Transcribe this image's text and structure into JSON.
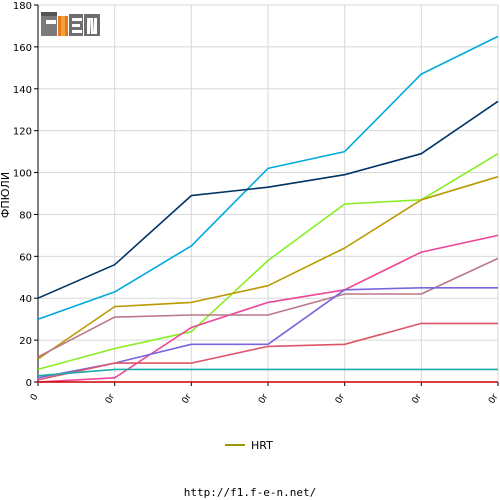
{
  "logo": {
    "text": "F1EN"
  },
  "url": "http://f1.f-e-n.net/",
  "chart_data": {
    "type": "line",
    "ylabel": "ФПЮЛИ",
    "xlabel": "",
    "title": "",
    "ylim": [
      0,
      180
    ],
    "y_ticks": [
      0,
      20,
      40,
      60,
      80,
      100,
      120,
      140,
      160,
      180
    ],
    "x_tick_labels": [
      "0",
      "0r",
      "0r",
      "0r",
      "0r",
      "0r",
      "0r",
      "0r"
    ],
    "grid": true,
    "legend": {
      "position": "bottom",
      "entries": [
        {
          "name": "HRT",
          "color": "#999900"
        }
      ]
    },
    "series": [
      {
        "color": "#00aadd",
        "values": [
          30,
          43,
          65,
          102,
          110,
          147,
          165
        ]
      },
      {
        "color": "#003366",
        "values": [
          40,
          56,
          89,
          93,
          99,
          109,
          134
        ]
      },
      {
        "color": "#88ee22",
        "values": [
          6,
          16,
          24,
          58,
          85,
          87,
          109
        ]
      },
      {
        "name": "HRT",
        "color": "#bb9900",
        "values": [
          11,
          36,
          38,
          46,
          64,
          87,
          98
        ]
      },
      {
        "color": "#ee4499",
        "values": [
          0,
          2,
          26,
          38,
          44,
          62,
          70
        ]
      },
      {
        "color": "#bb7788",
        "values": [
          12,
          31,
          32,
          32,
          42,
          42,
          59
        ]
      },
      {
        "color": "#7766dd",
        "values": [
          2,
          9,
          18,
          18,
          44,
          45,
          45
        ]
      },
      {
        "color": "#dd5566",
        "values": [
          1,
          9,
          9,
          17,
          18,
          28,
          28
        ]
      },
      {
        "color": "#22aaaa",
        "values": [
          3,
          6,
          6,
          6,
          6,
          6,
          6
        ]
      },
      {
        "color": "#cc0000",
        "values": [
          0,
          0,
          0,
          0,
          0,
          0,
          0
        ]
      }
    ]
  }
}
